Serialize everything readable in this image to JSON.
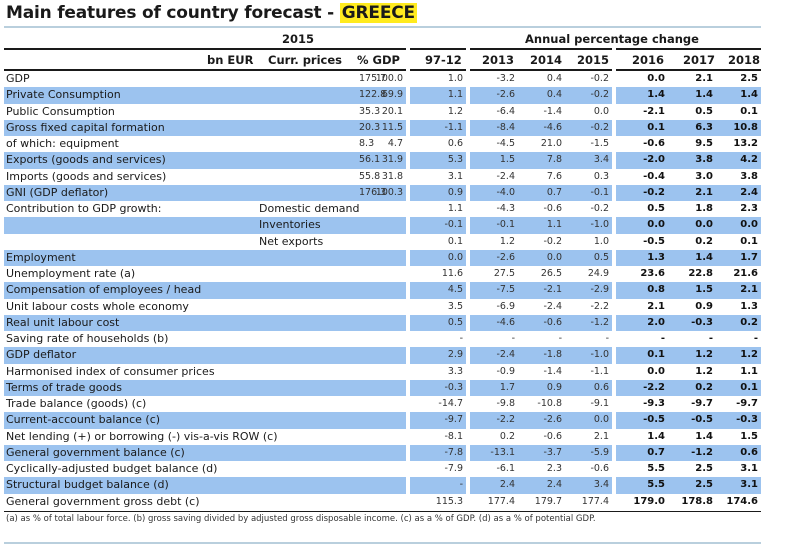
{
  "title": {
    "prefix": "Main features of country forecast - ",
    "country": "GREECE"
  },
  "header": {
    "year_group": "2015",
    "annual_group": "Annual percentage change",
    "columns": {
      "bn_eur": "bn EUR",
      "curr_prices": "Curr. prices",
      "pct_gdp": "% GDP",
      "hist": "97-12",
      "y2013": "2013",
      "y2014": "2014",
      "y2015": "2015",
      "y2016": "2016",
      "y2017": "2017",
      "y2018": "2018"
    }
  },
  "rows": [
    {
      "label": "GDP",
      "sub": "",
      "cp": "175.7",
      "gdp": "100.0",
      "v": [
        "1.0",
        "-3.2",
        "0.4",
        "-0.2",
        "0.0",
        "2.1",
        "2.5"
      ]
    },
    {
      "label": "Private Consumption",
      "sub": "",
      "cp": "122.8",
      "gdp": "69.9",
      "v": [
        "1.1",
        "-2.6",
        "0.4",
        "-0.2",
        "1.4",
        "1.4",
        "1.4"
      ]
    },
    {
      "label": "Public Consumption",
      "sub": "",
      "cp": "35.3",
      "gdp": "20.1",
      "v": [
        "1.2",
        "-6.4",
        "-1.4",
        "0.0",
        "-2.1",
        "0.5",
        "0.1"
      ]
    },
    {
      "label": "Gross fixed capital formation",
      "sub": "",
      "cp": "20.3",
      "gdp": "11.5",
      "v": [
        "-1.1",
        "-8.4",
        "-4.6",
        "-0.2",
        "0.1",
        "6.3",
        "10.8"
      ]
    },
    {
      "label": "of which: equipment",
      "sub": "",
      "cp": "8.3",
      "gdp": "4.7",
      "v": [
        "0.6",
        "-4.5",
        "21.0",
        "-1.5",
        "-0.6",
        "9.5",
        "13.2"
      ]
    },
    {
      "label": "Exports (goods and services)",
      "sub": "",
      "cp": "56.1",
      "gdp": "31.9",
      "v": [
        "5.3",
        "1.5",
        "7.8",
        "3.4",
        "-2.0",
        "3.8",
        "4.2"
      ]
    },
    {
      "label": "Imports (goods and services)",
      "sub": "",
      "cp": "55.8",
      "gdp": "31.8",
      "v": [
        "3.1",
        "-2.4",
        "7.6",
        "0.3",
        "-0.4",
        "3.0",
        "3.8"
      ]
    },
    {
      "label": "GNI (GDP deflator)",
      "sub": "",
      "cp": "176.3",
      "gdp": "100.3",
      "v": [
        "0.9",
        "-4.0",
        "0.7",
        "-0.1",
        "-0.2",
        "2.1",
        "2.4"
      ]
    },
    {
      "label": "Contribution to GDP growth:",
      "sub": "Domestic demand",
      "cp": "",
      "gdp": "",
      "v": [
        "1.1",
        "-4.3",
        "-0.6",
        "-0.2",
        "0.5",
        "1.8",
        "2.3"
      ]
    },
    {
      "label": "",
      "sub": "Inventories",
      "cp": "",
      "gdp": "",
      "v": [
        "-0.1",
        "-0.1",
        "1.1",
        "-1.0",
        "0.0",
        "0.0",
        "0.0"
      ]
    },
    {
      "label": "",
      "sub": "Net exports",
      "cp": "",
      "gdp": "",
      "v": [
        "0.1",
        "1.2",
        "-0.2",
        "1.0",
        "-0.5",
        "0.2",
        "0.1"
      ]
    },
    {
      "label": "Employment",
      "sub": "",
      "cp": "",
      "gdp": "",
      "v": [
        "0.0",
        "-2.6",
        "0.0",
        "0.5",
        "1.3",
        "1.4",
        "1.7"
      ]
    },
    {
      "label": "Unemployment rate (a)",
      "sub": "",
      "cp": "",
      "gdp": "",
      "v": [
        "11.6",
        "27.5",
        "26.5",
        "24.9",
        "23.6",
        "22.8",
        "21.6"
      ]
    },
    {
      "label": "Compensation of employees / head",
      "sub": "",
      "cp": "",
      "gdp": "",
      "v": [
        "4.5",
        "-7.5",
        "-2.1",
        "-2.9",
        "0.8",
        "1.5",
        "2.1"
      ]
    },
    {
      "label": "Unit labour costs whole economy",
      "sub": "",
      "cp": "",
      "gdp": "",
      "v": [
        "3.5",
        "-6.9",
        "-2.4",
        "-2.2",
        "2.1",
        "0.9",
        "1.3"
      ]
    },
    {
      "label": "Real unit labour cost",
      "sub": "",
      "cp": "",
      "gdp": "",
      "v": [
        "0.5",
        "-4.6",
        "-0.6",
        "-1.2",
        "2.0",
        "-0.3",
        "0.2"
      ]
    },
    {
      "label": "Saving rate of households (b)",
      "sub": "",
      "cp": "",
      "gdp": "",
      "v": [
        "-",
        "-",
        "-",
        "-",
        "-",
        "-",
        "-"
      ]
    },
    {
      "label": "GDP deflator",
      "sub": "",
      "cp": "",
      "gdp": "",
      "v": [
        "2.9",
        "-2.4",
        "-1.8",
        "-1.0",
        "0.1",
        "1.2",
        "1.2"
      ]
    },
    {
      "label": "Harmonised index of consumer prices",
      "sub": "",
      "cp": "",
      "gdp": "",
      "v": [
        "3.3",
        "-0.9",
        "-1.4",
        "-1.1",
        "0.0",
        "1.2",
        "1.1"
      ]
    },
    {
      "label": "Terms of trade goods",
      "sub": "",
      "cp": "",
      "gdp": "",
      "v": [
        "-0.3",
        "1.7",
        "0.9",
        "0.6",
        "-2.2",
        "0.2",
        "0.1"
      ]
    },
    {
      "label": "Trade balance (goods) (c)",
      "sub": "",
      "cp": "",
      "gdp": "",
      "v": [
        "-14.7",
        "-9.8",
        "-10.8",
        "-9.1",
        "-9.3",
        "-9.7",
        "-9.7"
      ]
    },
    {
      "label": "Current-account balance (c)",
      "sub": "",
      "cp": "",
      "gdp": "",
      "v": [
        "-9.7",
        "-2.2",
        "-2.6",
        "0.0",
        "-0.5",
        "-0.5",
        "-0.3"
      ]
    },
    {
      "label": "Net lending (+) or borrowing (-) vis-a-vis ROW (c)",
      "sub": "",
      "cp": "",
      "gdp": "",
      "v": [
        "-8.1",
        "0.2",
        "-0.6",
        "2.1",
        "1.4",
        "1.4",
        "1.5"
      ]
    },
    {
      "label": "General government balance (c)",
      "sub": "",
      "cp": "",
      "gdp": "",
      "v": [
        "-7.8",
        "-13.1",
        "-3.7",
        "-5.9",
        "0.7",
        "-1.2",
        "0.6"
      ]
    },
    {
      "label": "Cyclically-adjusted budget balance (d)",
      "sub": "",
      "cp": "",
      "gdp": "",
      "v": [
        "-7.9",
        "-6.1",
        "2.3",
        "-0.6",
        "5.5",
        "2.5",
        "3.1"
      ]
    },
    {
      "label": "Structural budget balance (d)",
      "sub": "",
      "cp": "",
      "gdp": "",
      "v": [
        "-",
        "2.4",
        "2.4",
        "3.4",
        "5.5",
        "2.5",
        "3.1"
      ]
    },
    {
      "label": "General government gross debt (c)",
      "sub": "",
      "cp": "",
      "gdp": "",
      "v": [
        "115.3",
        "177.4",
        "179.7",
        "177.4",
        "179.0",
        "178.8",
        "174.6"
      ]
    }
  ],
  "footnote": "(a) as % of total labour force. (b) gross saving divided by adjusted gross disposable income.  (c) as a % of  GDP. (d) as a % of  potential GDP.",
  "colors": {
    "shade": "#9cc3ef",
    "highlight": "#ffeb1f",
    "rule_accent": "#b9cfdd"
  }
}
